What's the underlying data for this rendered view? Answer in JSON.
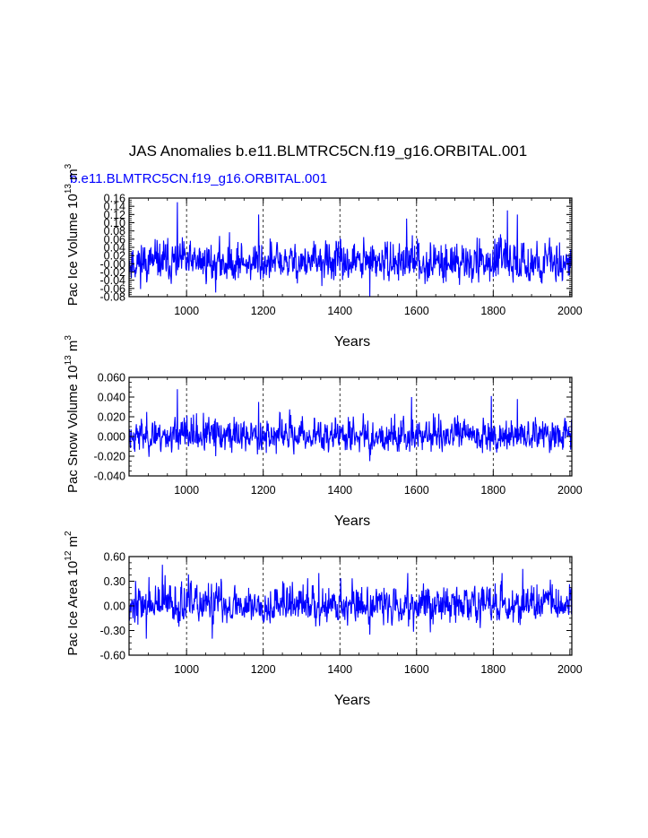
{
  "title": "JAS Anomalies b.e11.BLMTRC5CN.f19_g16.ORBITAL.001",
  "subtitle": "b.e11.BLMTRC5CN.f19_g16.ORBITAL.001",
  "colors": {
    "series": "#0000ff",
    "axes": "#000000",
    "subtitle": "#0000ff"
  },
  "chart_data": [
    {
      "type": "line",
      "name": "Pac Ice Volume",
      "ylabel": {
        "prefix": "Pac Ice Volume 10",
        "exp": "13",
        "unit": " m",
        "unit_exp": "3"
      },
      "xlabel": "Years",
      "xlim": [
        850,
        2005
      ],
      "ylim": [
        -0.08,
        0.16
      ],
      "yticks": [
        "-0.08",
        "-0.04",
        "-0.00",
        "0.04",
        "0.08",
        "0.12",
        "0.16"
      ],
      "yticks_right": [
        "-0.08",
        "-0.06",
        "-0.04",
        "-0.02",
        "0.00",
        "0.02",
        "0.04",
        "0.06",
        "0.08",
        "0.10",
        "0.12",
        "0.14",
        "0.16"
      ],
      "yticks_left_labels": [
        "-0.08",
        "-0.06",
        "-0.04",
        "-0.02",
        "0.00",
        "0.02",
        "0.04",
        "0.06",
        "0.08",
        "0.10",
        "0.12",
        "0.14",
        "0.16"
      ],
      "xticks": [
        "1000",
        "1200",
        "1400",
        "1600",
        "1800",
        "2000"
      ],
      "gridlines_x": [
        1000,
        1200,
        1400,
        1600,
        1800
      ],
      "series": {
        "name": "JAS anomaly",
        "x_start": 850,
        "x_end": 2005,
        "seed": 11,
        "mean": 0.0,
        "std": 0.028,
        "peaks": [
          [
            976,
            0.15
          ],
          [
            1837,
            0.13
          ],
          [
            1188,
            0.12
          ],
          [
            1863,
            0.12
          ],
          [
            1574,
            0.11
          ]
        ],
        "troughs": [
          [
            1478,
            -0.08
          ],
          [
            1076,
            -0.07
          ]
        ],
        "min": -0.08,
        "max": 0.15
      }
    },
    {
      "type": "line",
      "name": "Pac Snow Volume",
      "ylabel": {
        "prefix": "Pac Snow Volume 10",
        "exp": "13",
        "unit": " m",
        "unit_exp": "3"
      },
      "xlabel": "Years",
      "xlim": [
        850,
        2005
      ],
      "ylim": [
        -0.04,
        0.06
      ],
      "yticks_left_labels": [
        "-0.040",
        "-0.020",
        "0.000",
        "0.020",
        "0.040",
        "0.060"
      ],
      "xticks": [
        "1000",
        "1200",
        "1400",
        "1600",
        "1800",
        "2000"
      ],
      "gridlines_x": [
        1000,
        1200,
        1400,
        1600,
        1800
      ],
      "series": {
        "name": "JAS anomaly",
        "x_start": 850,
        "x_end": 2005,
        "seed": 23,
        "mean": 0.0,
        "std": 0.01,
        "peaks": [
          [
            976,
            0.048
          ],
          [
            1795,
            0.041
          ],
          [
            1587,
            0.04
          ],
          [
            1188,
            0.035
          ],
          [
            1863,
            0.038
          ]
        ],
        "troughs": [
          [
            1478,
            -0.025
          ],
          [
            1076,
            -0.02
          ]
        ],
        "min": -0.025,
        "max": 0.048
      }
    },
    {
      "type": "line",
      "name": "Pac Ice Area",
      "ylabel": {
        "prefix": "Pac Ice Area 10",
        "exp": "12",
        "unit": " m",
        "unit_exp": "2"
      },
      "xlabel": "Years",
      "xlim": [
        850,
        2005
      ],
      "ylim": [
        -0.6,
        0.6
      ],
      "yticks_left_labels": [
        "-0.60",
        "-0.30",
        "0.00",
        "0.30",
        "0.60"
      ],
      "xticks": [
        "1000",
        "1200",
        "1400",
        "1600",
        "1800",
        "2000"
      ],
      "gridlines_x": [
        1000,
        1200,
        1400,
        1600,
        1800
      ],
      "series": {
        "name": "JAS anomaly",
        "x_start": 850,
        "x_end": 2005,
        "seed": 37,
        "mean": 0.0,
        "std": 0.14,
        "peaks": [
          [
            937,
            0.5
          ],
          [
            1877,
            0.45
          ],
          [
            1577,
            0.4
          ],
          [
            1345,
            0.4
          ],
          [
            1823,
            0.4
          ]
        ],
        "troughs": [
          [
            1067,
            -0.4
          ],
          [
            1478,
            -0.35
          ],
          [
            895,
            -0.4
          ]
        ],
        "min": -0.4,
        "max": 0.5
      }
    }
  ]
}
